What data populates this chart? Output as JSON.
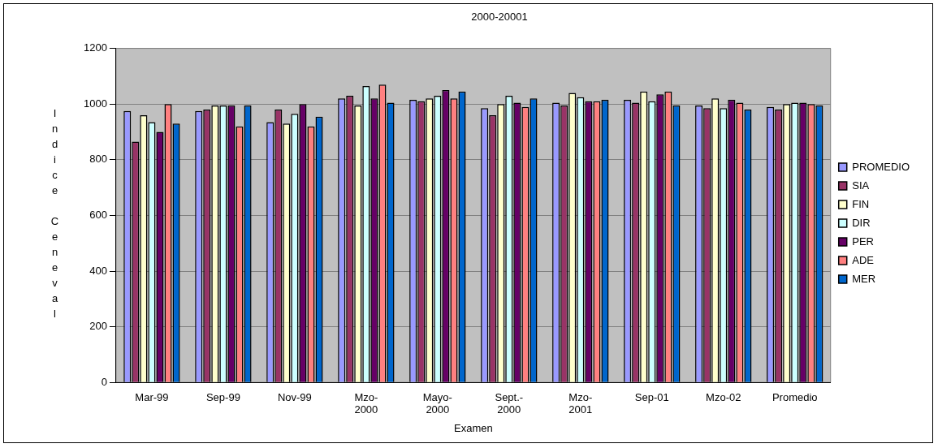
{
  "chart_data": {
    "type": "bar",
    "title": "2000-20001",
    "xlabel": "Examen",
    "ylabel": "Indice Ceneval",
    "categories": [
      "Mar-99",
      "Sep-99",
      "Nov-99",
      "Mzo-2000",
      "Mayo-2000",
      "Sept.-2000",
      "Mzo-2001",
      "Sep-01",
      "Mzo-02",
      "Promedio"
    ],
    "series": [
      {
        "name": "PROMEDIO",
        "color": "#9999ff",
        "values": [
          975,
          975,
          935,
          1020,
          1015,
          985,
          1005,
          1015,
          995,
          990
        ]
      },
      {
        "name": "SIA",
        "color": "#993366",
        "values": [
          865,
          980,
          980,
          1030,
          1010,
          960,
          995,
          1005,
          985,
          980
        ]
      },
      {
        "name": "FIN",
        "color": "#ffffcc",
        "values": [
          960,
          995,
          930,
          995,
          1020,
          1000,
          1040,
          1045,
          1020,
          1000
        ]
      },
      {
        "name": "DIR",
        "color": "#ccffff",
        "values": [
          935,
          995,
          965,
          1065,
          1030,
          1030,
          1025,
          1010,
          985,
          1005
        ]
      },
      {
        "name": "PER",
        "color": "#660066",
        "values": [
          900,
          995,
          1000,
          1020,
          1050,
          1005,
          1010,
          1035,
          1015,
          1005
        ]
      },
      {
        "name": "ADE",
        "color": "#ff8080",
        "values": [
          1000,
          920,
          920,
          1070,
          1020,
          990,
          1010,
          1045,
          1005,
          1000
        ]
      },
      {
        "name": "MER",
        "color": "#0066cc",
        "values": [
          930,
          995,
          955,
          1005,
          1045,
          1020,
          1015,
          995,
          980,
          995
        ]
      }
    ],
    "ylim": [
      0,
      1200
    ],
    "yticks": [
      0,
      200,
      400,
      600,
      800,
      1000,
      1200
    ],
    "grid": "y",
    "legend": "right"
  }
}
